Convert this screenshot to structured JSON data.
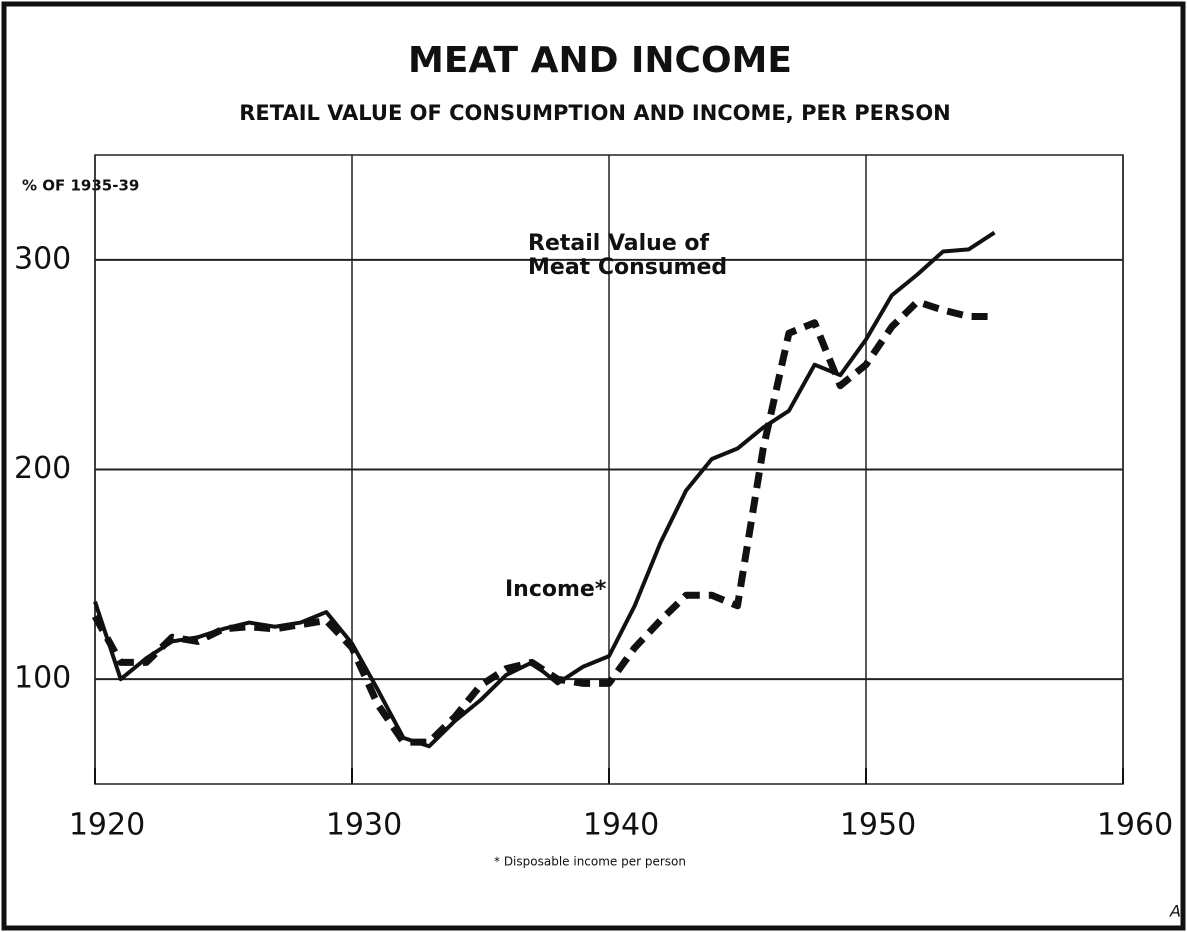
{
  "chart_data": {
    "type": "line",
    "title": "MEAT AND INCOME",
    "subtitle": "RETAIL VALUE OF CONSUMPTION AND INCOME, PER PERSON",
    "y_label": "% OF 1935-39",
    "footnote": "* Disposable income per person",
    "corner_label": "A",
    "x": [
      1920,
      1921,
      1922,
      1923,
      1924,
      1925,
      1926,
      1927,
      1928,
      1929,
      1930,
      1931,
      1932,
      1933,
      1934,
      1935,
      1936,
      1937,
      1938,
      1939,
      1940,
      1941,
      1942,
      1943,
      1944,
      1945,
      1946,
      1947,
      1948,
      1949,
      1950,
      1951,
      1952,
      1953,
      1954,
      1955
    ],
    "series": [
      {
        "name": "Income*",
        "color": "#111111",
        "dash": false,
        "values": [
          137,
          100,
          110,
          118,
          120,
          124,
          127,
          125,
          127,
          132,
          117,
          95,
          72,
          68,
          80,
          90,
          102,
          108,
          98,
          106,
          111,
          135,
          165,
          190,
          205,
          210,
          220,
          228,
          250,
          245,
          262,
          283,
          293,
          304,
          305,
          313
        ]
      },
      {
        "name": "Retail Value of Meat Consumed",
        "color": "#111111",
        "dash": true,
        "values": [
          130,
          108,
          108,
          120,
          118,
          124,
          125,
          124,
          126,
          128,
          115,
          88,
          70,
          70,
          82,
          97,
          105,
          108,
          100,
          98,
          98,
          115,
          128,
          140,
          140,
          135,
          210,
          265,
          270,
          240,
          250,
          268,
          280,
          276,
          273,
          273
        ]
      }
    ],
    "xlim": [
      1920,
      1960
    ],
    "xticks": [
      1920,
      1930,
      1940,
      1950,
      1960
    ],
    "ylim": [
      50,
      350
    ],
    "yticks": [
      100,
      200,
      300
    ],
    "grid": true
  }
}
